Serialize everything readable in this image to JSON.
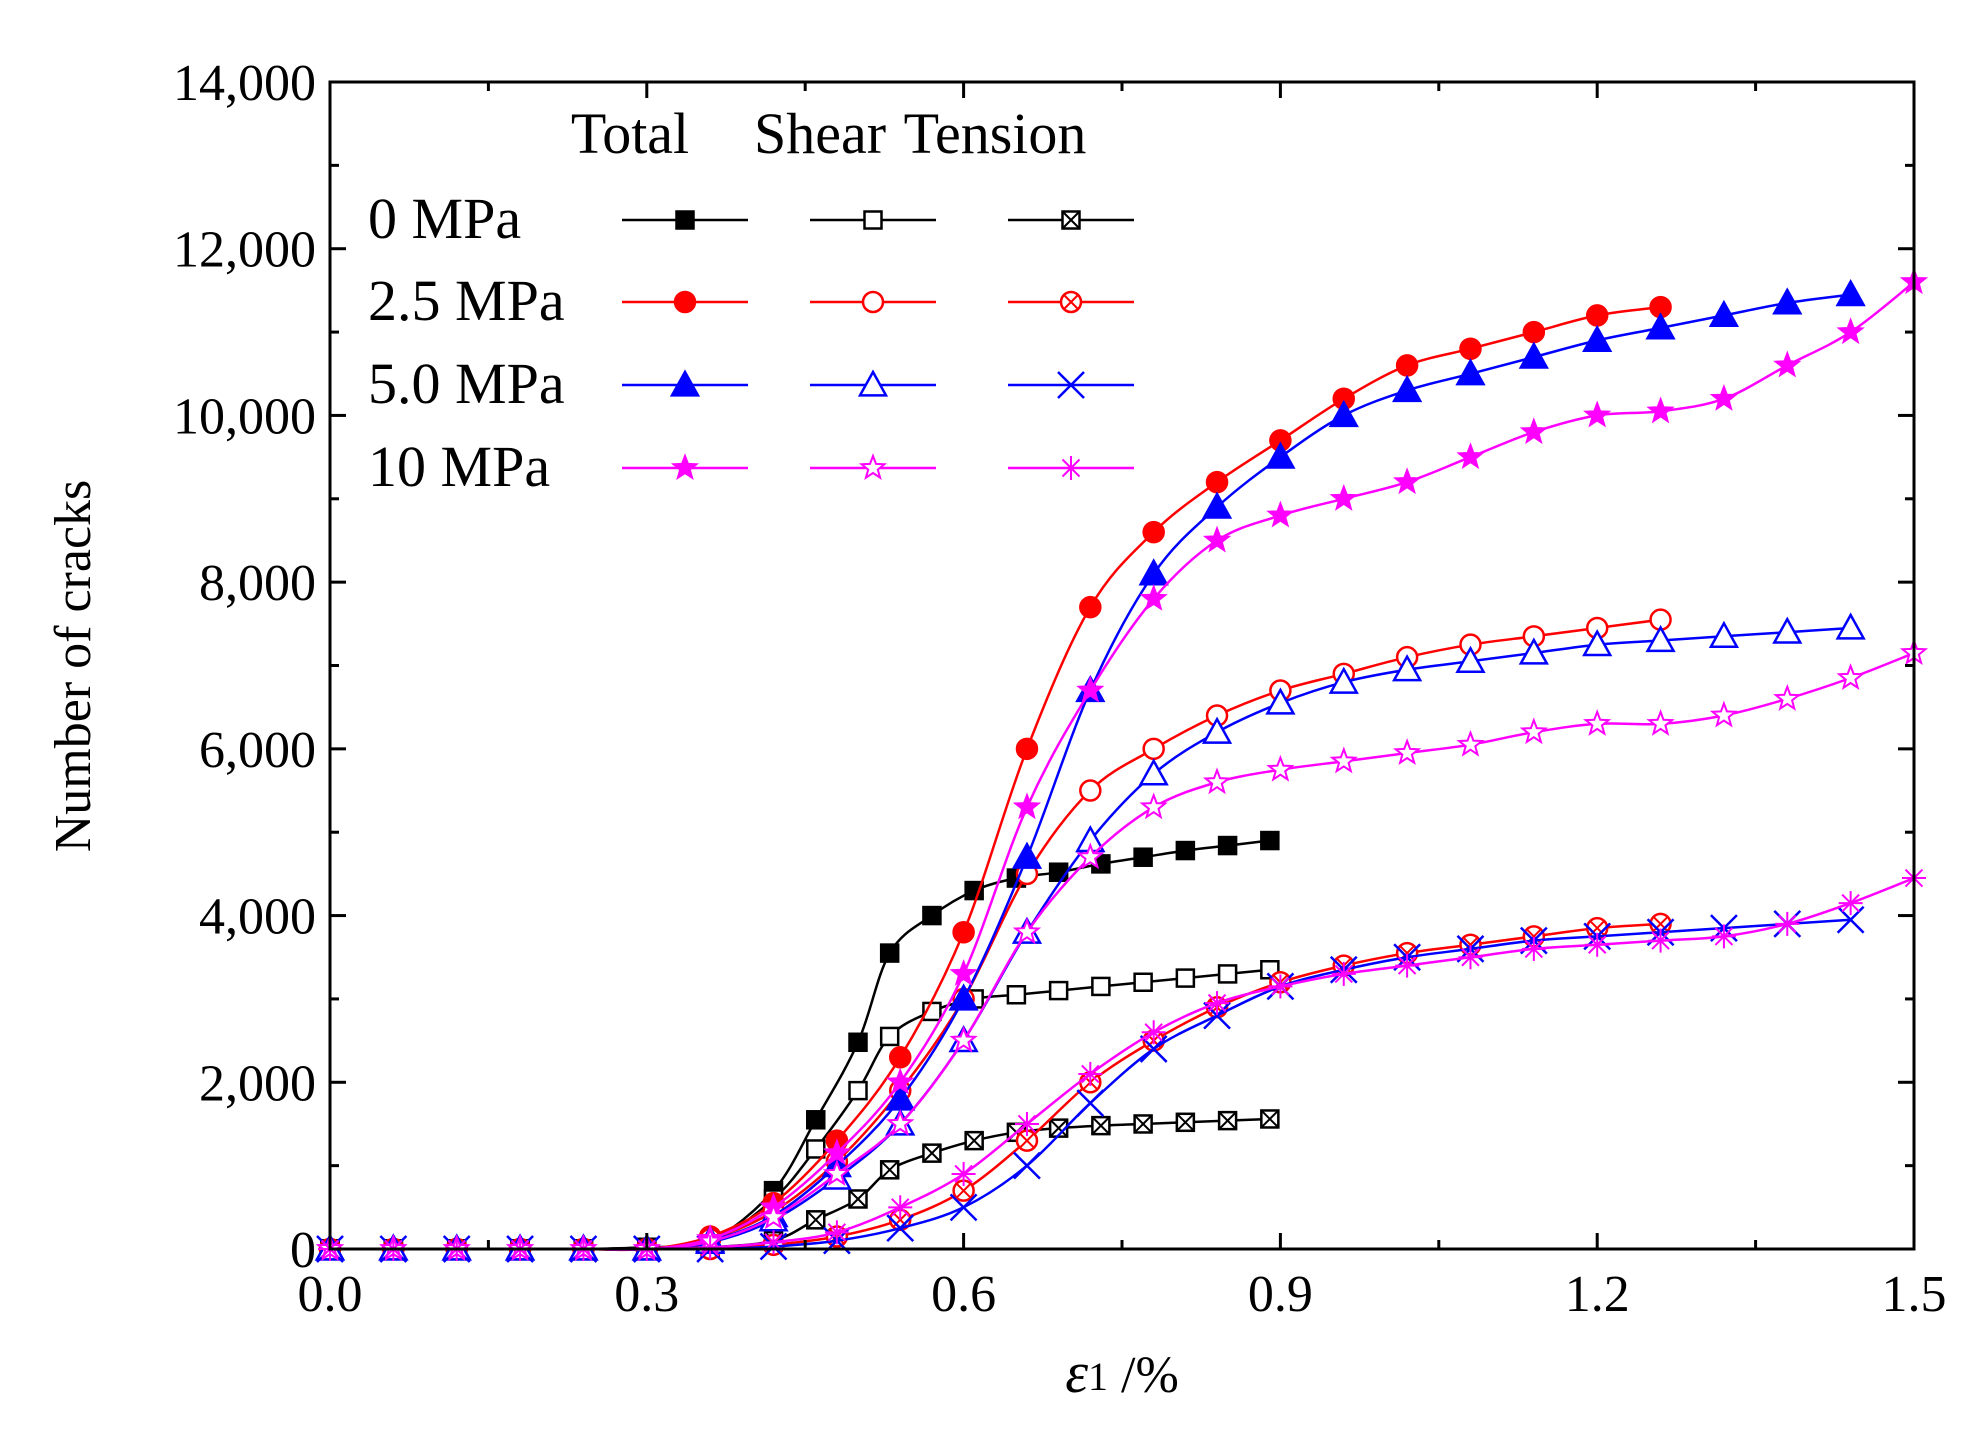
{
  "chart_data": {
    "type": "line",
    "title": "",
    "xlabel_symbol": "ε",
    "xlabel_subscript": "1",
    "xlabel_unit": " /%",
    "ylabel": "Number of cracks",
    "xlim": [
      0.0,
      1.5
    ],
    "ylim": [
      0,
      14000
    ],
    "x_ticks": [
      "0.0",
      "0.3",
      "0.6",
      "0.9",
      "1.2",
      "1.5"
    ],
    "y_ticks": [
      "0",
      "2,000",
      "4,000",
      "6,000",
      "8,000",
      "10,000",
      "12,000",
      "14,000"
    ],
    "x_tick_values": [
      0.0,
      0.3,
      0.6,
      0.9,
      1.2,
      1.5
    ],
    "y_tick_values": [
      0,
      2000,
      4000,
      6000,
      8000,
      10000,
      12000,
      14000
    ],
    "legend": {
      "placement": "top-left",
      "column_headers": [
        "Total",
        "Shear",
        "Tension"
      ],
      "rows": [
        "0 MPa",
        "2.5 MPa",
        "5.0 MPa",
        "10 MPa"
      ]
    },
    "series": [
      {
        "name": "0 MPa Total",
        "group": "0 MPa",
        "kind": "Total",
        "color": "#000000",
        "marker": "square-filled",
        "x": [
          0.0,
          0.06,
          0.12,
          0.18,
          0.24,
          0.3,
          0.36,
          0.42,
          0.46,
          0.5,
          0.53,
          0.57,
          0.61,
          0.65,
          0.69,
          0.73,
          0.77,
          0.81,
          0.85,
          0.89
        ],
        "y": [
          0,
          0,
          0,
          0,
          0,
          20,
          100,
          700,
          1550,
          2480,
          3550,
          4000,
          4300,
          4450,
          4520,
          4620,
          4700,
          4780,
          4840,
          4900
        ]
      },
      {
        "name": "0 MPa Shear",
        "group": "0 MPa",
        "kind": "Shear",
        "color": "#000000",
        "marker": "square-open",
        "x": [
          0.0,
          0.06,
          0.12,
          0.18,
          0.24,
          0.3,
          0.36,
          0.42,
          0.46,
          0.5,
          0.53,
          0.57,
          0.61,
          0.65,
          0.69,
          0.73,
          0.77,
          0.81,
          0.85,
          0.89
        ],
        "y": [
          0,
          0,
          0,
          0,
          0,
          20,
          80,
          600,
          1200,
          1900,
          2550,
          2850,
          3000,
          3050,
          3100,
          3150,
          3200,
          3250,
          3300,
          3350
        ]
      },
      {
        "name": "0 MPa Tension",
        "group": "0 MPa",
        "kind": "Tension",
        "color": "#000000",
        "marker": "square-cross",
        "x": [
          0.0,
          0.06,
          0.12,
          0.18,
          0.24,
          0.3,
          0.36,
          0.42,
          0.46,
          0.5,
          0.53,
          0.57,
          0.61,
          0.65,
          0.69,
          0.73,
          0.77,
          0.81,
          0.85,
          0.89
        ],
        "y": [
          0,
          0,
          0,
          0,
          0,
          0,
          20,
          100,
          350,
          600,
          950,
          1150,
          1300,
          1400,
          1450,
          1480,
          1500,
          1520,
          1540,
          1560
        ]
      },
      {
        "name": "2.5 MPa Total",
        "group": "2.5 MPa",
        "kind": "Total",
        "color": "#ff0000",
        "marker": "circle-filled",
        "x": [
          0.0,
          0.06,
          0.12,
          0.18,
          0.24,
          0.3,
          0.36,
          0.42,
          0.48,
          0.54,
          0.6,
          0.66,
          0.72,
          0.78,
          0.84,
          0.9,
          0.96,
          1.02,
          1.08,
          1.14,
          1.2,
          1.26
        ],
        "y": [
          0,
          0,
          0,
          0,
          0,
          0,
          150,
          550,
          1300,
          2300,
          3800,
          6000,
          7700,
          8600,
          9200,
          9700,
          10200,
          10600,
          10800,
          11000,
          11200,
          11300
        ]
      },
      {
        "name": "2.5 MPa Shear",
        "group": "2.5 MPa",
        "kind": "Shear",
        "color": "#ff0000",
        "marker": "circle-open",
        "x": [
          0.0,
          0.06,
          0.12,
          0.18,
          0.24,
          0.3,
          0.36,
          0.42,
          0.48,
          0.54,
          0.6,
          0.66,
          0.72,
          0.78,
          0.84,
          0.9,
          0.96,
          1.02,
          1.08,
          1.14,
          1.2,
          1.26
        ],
        "y": [
          0,
          0,
          0,
          0,
          0,
          0,
          120,
          450,
          1050,
          1900,
          3000,
          4500,
          5500,
          6000,
          6400,
          6700,
          6900,
          7100,
          7250,
          7350,
          7450,
          7550
        ]
      },
      {
        "name": "2.5 MPa Tension",
        "group": "2.5 MPa",
        "kind": "Tension",
        "color": "#ff0000",
        "marker": "circle-cross",
        "x": [
          0.0,
          0.06,
          0.12,
          0.18,
          0.24,
          0.3,
          0.36,
          0.42,
          0.48,
          0.54,
          0.6,
          0.66,
          0.72,
          0.78,
          0.84,
          0.9,
          0.96,
          1.02,
          1.08,
          1.14,
          1.2,
          1.26
        ],
        "y": [
          0,
          0,
          0,
          0,
          0,
          0,
          0,
          50,
          150,
          350,
          700,
          1300,
          2000,
          2500,
          2900,
          3200,
          3400,
          3550,
          3650,
          3750,
          3850,
          3900
        ]
      },
      {
        "name": "5.0 MPa Total",
        "group": "5.0 MPa",
        "kind": "Total",
        "color": "#0000ff",
        "marker": "triangle-filled",
        "x": [
          0.0,
          0.06,
          0.12,
          0.18,
          0.24,
          0.3,
          0.36,
          0.42,
          0.48,
          0.54,
          0.6,
          0.66,
          0.72,
          0.78,
          0.84,
          0.9,
          0.96,
          1.02,
          1.08,
          1.14,
          1.2,
          1.26,
          1.32,
          1.38,
          1.44
        ],
        "y": [
          0,
          0,
          0,
          0,
          0,
          0,
          100,
          400,
          1000,
          1800,
          3000,
          4700,
          6700,
          8100,
          8900,
          9500,
          10000,
          10300,
          10500,
          10700,
          10900,
          11050,
          11200,
          11350,
          11450
        ]
      },
      {
        "name": "5.0 MPa Shear",
        "group": "5.0 MPa",
        "kind": "Shear",
        "color": "#0000ff",
        "marker": "triangle-open",
        "x": [
          0.0,
          0.06,
          0.12,
          0.18,
          0.24,
          0.3,
          0.36,
          0.42,
          0.48,
          0.54,
          0.6,
          0.66,
          0.72,
          0.78,
          0.84,
          0.9,
          0.96,
          1.02,
          1.08,
          1.14,
          1.2,
          1.26,
          1.32,
          1.38,
          1.44
        ],
        "y": [
          0,
          0,
          0,
          0,
          0,
          0,
          80,
          350,
          850,
          1500,
          2500,
          3800,
          4900,
          5700,
          6200,
          6550,
          6800,
          6950,
          7050,
          7150,
          7250,
          7300,
          7350,
          7400,
          7450
        ]
      },
      {
        "name": "5.0 MPa Tension",
        "group": "5.0 MPa",
        "kind": "Tension",
        "color": "#0000ff",
        "marker": "triangle-cross",
        "x": [
          0.0,
          0.06,
          0.12,
          0.18,
          0.24,
          0.3,
          0.36,
          0.42,
          0.48,
          0.54,
          0.6,
          0.66,
          0.72,
          0.78,
          0.84,
          0.9,
          0.96,
          1.02,
          1.08,
          1.14,
          1.2,
          1.26,
          1.32,
          1.38,
          1.44
        ],
        "y": [
          0,
          0,
          0,
          0,
          0,
          0,
          0,
          30,
          100,
          250,
          500,
          1000,
          1750,
          2400,
          2800,
          3150,
          3350,
          3500,
          3600,
          3700,
          3750,
          3800,
          3850,
          3900,
          3950
        ]
      },
      {
        "name": "10 MPa Total",
        "group": "10 MPa",
        "kind": "Total",
        "color": "#ff00ff",
        "marker": "star-filled",
        "x": [
          0.0,
          0.06,
          0.12,
          0.18,
          0.24,
          0.3,
          0.36,
          0.42,
          0.48,
          0.54,
          0.6,
          0.66,
          0.72,
          0.78,
          0.84,
          0.9,
          0.96,
          1.02,
          1.08,
          1.14,
          1.2,
          1.26,
          1.32,
          1.38,
          1.44,
          1.5
        ],
        "y": [
          0,
          0,
          0,
          0,
          0,
          0,
          120,
          500,
          1150,
          2000,
          3300,
          5300,
          6700,
          7800,
          8500,
          8800,
          9000,
          9200,
          9500,
          9800,
          10000,
          10050,
          10200,
          10600,
          11000,
          11600
        ]
      },
      {
        "name": "10 MPa Shear",
        "group": "10 MPa",
        "kind": "Shear",
        "color": "#ff00ff",
        "marker": "star-open",
        "x": [
          0.0,
          0.06,
          0.12,
          0.18,
          0.24,
          0.3,
          0.36,
          0.42,
          0.48,
          0.54,
          0.6,
          0.66,
          0.72,
          0.78,
          0.84,
          0.9,
          0.96,
          1.02,
          1.08,
          1.14,
          1.2,
          1.26,
          1.32,
          1.38,
          1.44,
          1.5
        ],
        "y": [
          0,
          0,
          0,
          0,
          0,
          0,
          90,
          380,
          900,
          1500,
          2500,
          3800,
          4700,
          5300,
          5600,
          5750,
          5850,
          5950,
          6050,
          6200,
          6300,
          6300,
          6400,
          6600,
          6850,
          7150
        ]
      },
      {
        "name": "10 MPa Tension",
        "group": "10 MPa",
        "kind": "Tension",
        "color": "#ff00ff",
        "marker": "star-cross",
        "x": [
          0.0,
          0.06,
          0.12,
          0.18,
          0.24,
          0.3,
          0.36,
          0.42,
          0.48,
          0.54,
          0.6,
          0.66,
          0.72,
          0.78,
          0.84,
          0.9,
          0.96,
          1.02,
          1.08,
          1.14,
          1.2,
          1.26,
          1.32,
          1.38,
          1.44,
          1.5
        ],
        "y": [
          0,
          0,
          0,
          0,
          0,
          0,
          20,
          80,
          200,
          500,
          900,
          1500,
          2100,
          2600,
          2950,
          3150,
          3300,
          3400,
          3500,
          3600,
          3650,
          3700,
          3750,
          3900,
          4150,
          4450
        ]
      }
    ]
  }
}
